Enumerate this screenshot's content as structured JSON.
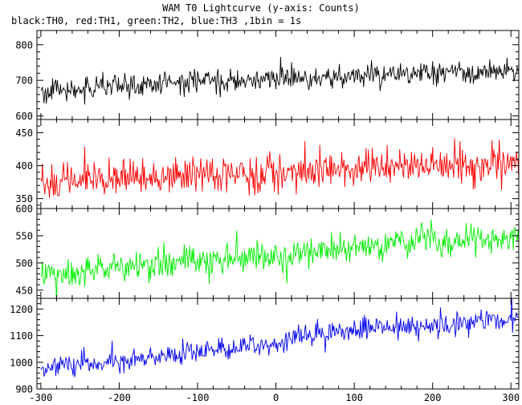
{
  "title": "WAM T0 Lightcurve (y-axis: Counts)",
  "subtitle": "black:TH0, red:TH1, green:TH2, blue:TH3 ,1bin = 1s",
  "chart_data": {
    "type": "line",
    "x_range": [
      -305,
      310
    ],
    "x_ticks": [
      -300,
      -200,
      -100,
      0,
      100,
      200,
      300
    ],
    "panels": [
      {
        "channel": "TH0",
        "color": "#000000",
        "y_range": [
          590,
          840
        ],
        "y_ticks": [
          600,
          700,
          800
        ],
        "trend": [
          [
            -300,
            668
          ],
          [
            -200,
            682
          ],
          [
            -100,
            698
          ],
          [
            0,
            703
          ],
          [
            100,
            712
          ],
          [
            200,
            720
          ],
          [
            310,
            722
          ]
        ],
        "noise": 28
      },
      {
        "channel": "TH1",
        "color": "#ff0000",
        "y_range": [
          335,
          470
        ],
        "y_ticks": [
          350,
          400,
          450
        ],
        "trend": [
          [
            -300,
            378
          ],
          [
            -200,
            382
          ],
          [
            -100,
            385
          ],
          [
            0,
            388
          ],
          [
            100,
            396
          ],
          [
            200,
            401
          ],
          [
            310,
            405
          ]
        ],
        "noise": 24
      },
      {
        "channel": "TH2",
        "color": "#00ee00",
        "y_range": [
          435,
          600
        ],
        "y_ticks": [
          450,
          500,
          550,
          600
        ],
        "trend": [
          [
            -300,
            475
          ],
          [
            -200,
            493
          ],
          [
            -100,
            505
          ],
          [
            0,
            512
          ],
          [
            100,
            528
          ],
          [
            200,
            540
          ],
          [
            310,
            545
          ]
        ],
        "noise": 24
      },
      {
        "channel": "TH3",
        "color": "#0000ee",
        "y_range": [
          900,
          1240
        ],
        "y_ticks": [
          900,
          1000,
          1100,
          1200
        ],
        "trend": [
          [
            -300,
            978
          ],
          [
            -200,
            1000
          ],
          [
            -100,
            1040
          ],
          [
            0,
            1075
          ],
          [
            100,
            1120
          ],
          [
            200,
            1145
          ],
          [
            310,
            1165
          ]
        ],
        "noise": 38
      }
    ]
  }
}
